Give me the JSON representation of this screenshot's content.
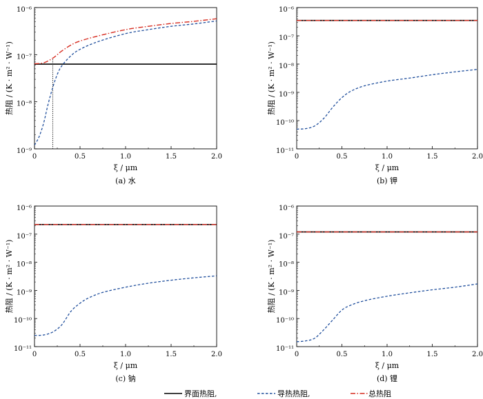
{
  "legend": {
    "items": [
      {
        "label": "界面热阻,",
        "color": "#000000",
        "dash": "solid"
      },
      {
        "label": "导热热阻,",
        "color": "#1f4e9c",
        "dash": "dashed"
      },
      {
        "label": "总热阻",
        "color": "#d62a1e",
        "dash": "dashdot"
      }
    ]
  },
  "chart_data": [
    {
      "type": "line",
      "caption": "(a)  水",
      "xlabel": "ξ / μm",
      "ylabel": "热阻 / (K · m² · W⁻¹)",
      "xlim": [
        0,
        2.0
      ],
      "ylim": [
        1e-09,
        1e-06
      ],
      "yscale": "log",
      "xticks": [
        "0",
        "0.5",
        "1.0",
        "1.5",
        "2.0"
      ],
      "yticks": [
        "10⁻⁹",
        "10⁻⁸",
        "10⁻⁷",
        "10⁻⁶"
      ],
      "vline_x": 0.2,
      "series": [
        {
          "name": "界面热阻",
          "x": [
            0,
            2.0
          ],
          "y": [
            6.3e-08,
            6.3e-08
          ]
        },
        {
          "name": "导热热阻",
          "x": [
            0,
            0.05,
            0.1,
            0.15,
            0.2,
            0.25,
            0.3,
            0.4,
            0.5,
            0.7,
            1.0,
            1.25,
            1.5,
            1.75,
            2.0
          ],
          "y": [
            1.2e-09,
            1.8e-09,
            3.5e-09,
            9e-09,
            2e-08,
            3.8e-08,
            5.8e-08,
            9.5e-08,
            1.3e-07,
            1.9e-07,
            2.8e-07,
            3.4e-07,
            4e-07,
            4.5e-07,
            5.2e-07
          ]
        },
        {
          "name": "总热阻",
          "x": [
            0,
            0.1,
            0.2,
            0.25,
            0.3,
            0.4,
            0.5,
            0.7,
            1.0,
            1.25,
            1.5,
            1.75,
            2.0
          ],
          "y": [
            6.4e-08,
            6.7e-08,
            8.4e-08,
            1e-07,
            1.2e-07,
            1.6e-07,
            1.95e-07,
            2.5e-07,
            3.4e-07,
            4e-07,
            4.6e-07,
            5.1e-07,
            5.8e-07
          ]
        }
      ]
    },
    {
      "type": "line",
      "caption": "(b)  钾",
      "xlabel": "ξ / μm",
      "ylabel": "热阻 / (K · m² · W⁻¹)",
      "xlim": [
        0,
        2.0
      ],
      "ylim": [
        1e-11,
        1e-06
      ],
      "yscale": "log",
      "xticks": [
        "0",
        "0.5",
        "1.0",
        "1.5",
        "2.0"
      ],
      "yticks": [
        "10⁻¹¹",
        "10⁻¹⁰",
        "10⁻⁹",
        "10⁻⁸",
        "10⁻⁷",
        "10⁻⁶"
      ],
      "series": [
        {
          "name": "界面热阻",
          "x": [
            0,
            2.0
          ],
          "y": [
            3.5e-07,
            3.5e-07
          ]
        },
        {
          "name": "导热热阻",
          "x": [
            0,
            0.1,
            0.2,
            0.3,
            0.4,
            0.5,
            0.6,
            0.75,
            1.0,
            1.25,
            1.5,
            1.75,
            2.0
          ],
          "y": [
            5e-11,
            5.2e-11,
            6.5e-11,
            1.2e-10,
            3e-10,
            6.5e-10,
            1.1e-09,
            1.7e-09,
            2.5e-09,
            3.2e-09,
            4.2e-09,
            5.3e-09,
            6.5e-09
          ]
        },
        {
          "name": "总热阻",
          "x": [
            0,
            2.0
          ],
          "y": [
            3.5e-07,
            3.5e-07
          ]
        }
      ]
    },
    {
      "type": "line",
      "caption": "(c)  钠",
      "xlabel": "ξ / μm",
      "ylabel": "热阻 / (K · m² · W⁻¹)",
      "xlim": [
        0,
        2.0
      ],
      "ylim": [
        1e-11,
        1e-06
      ],
      "yscale": "log",
      "xticks": [
        "0",
        "0.5",
        "1.0",
        "1.5",
        "2.0"
      ],
      "yticks": [
        "10⁻¹¹",
        "10⁻¹⁰",
        "10⁻⁹",
        "10⁻⁸",
        "10⁻⁷",
        "10⁻⁶"
      ],
      "series": [
        {
          "name": "界面热阻",
          "x": [
            0,
            2.0
          ],
          "y": [
            2.2e-07,
            2.2e-07
          ]
        },
        {
          "name": "导热热阻",
          "x": [
            0,
            0.1,
            0.2,
            0.3,
            0.4,
            0.5,
            0.6,
            0.75,
            1.0,
            1.25,
            1.5,
            1.75,
            2.0
          ],
          "y": [
            2.5e-11,
            2.6e-11,
            3.3e-11,
            6e-11,
            1.8e-10,
            3.5e-10,
            5.5e-10,
            8.5e-10,
            1.3e-09,
            1.8e-09,
            2.3e-09,
            2.8e-09,
            3.3e-09
          ]
        },
        {
          "name": "总热阻",
          "x": [
            0,
            2.0
          ],
          "y": [
            2.2e-07,
            2.2e-07
          ]
        }
      ]
    },
    {
      "type": "line",
      "caption": "(d)  锂",
      "xlabel": "ξ / μm",
      "ylabel": "热阻 / (K · m² · W⁻¹)",
      "xlim": [
        0,
        2.0
      ],
      "ylim": [
        1e-11,
        1e-06
      ],
      "yscale": "log",
      "xticks": [
        "0",
        "0.5",
        "1.0",
        "1.5",
        "2.0"
      ],
      "yticks": [
        "10⁻¹¹",
        "10⁻¹⁰",
        "10⁻⁹",
        "10⁻⁸",
        "10⁻⁷",
        "10⁻⁶"
      ],
      "series": [
        {
          "name": "界面热阻",
          "x": [
            0,
            2.0
          ],
          "y": [
            1.2e-07,
            1.2e-07
          ]
        },
        {
          "name": "导热热阻",
          "x": [
            0,
            0.1,
            0.2,
            0.3,
            0.4,
            0.5,
            0.6,
            0.75,
            1.0,
            1.25,
            1.5,
            1.75,
            2.0
          ],
          "y": [
            1.5e-11,
            1.6e-11,
            2e-11,
            4e-11,
            9e-11,
            2e-10,
            3e-10,
            4.3e-10,
            6.2e-10,
            8.2e-10,
            1.05e-09,
            1.3e-09,
            1.7e-09
          ]
        },
        {
          "name": "总热阻",
          "x": [
            0,
            2.0
          ],
          "y": [
            1.2e-07,
            1.2e-07
          ]
        }
      ]
    }
  ]
}
